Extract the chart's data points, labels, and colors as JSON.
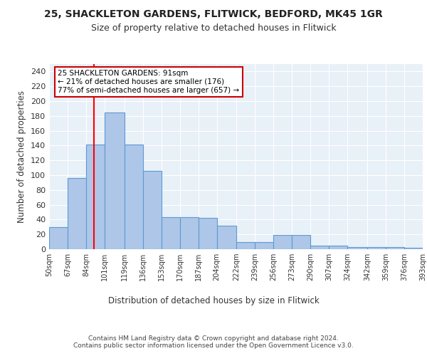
{
  "title1": "25, SHACKLETON GARDENS, FLITWICK, BEDFORD, MK45 1GR",
  "title2": "Size of property relative to detached houses in Flitwick",
  "xlabel": "Distribution of detached houses by size in Flitwick",
  "ylabel": "Number of detached properties",
  "bar_values": [
    30,
    96,
    141,
    185,
    141,
    106,
    43,
    43,
    42,
    32,
    10,
    10,
    19,
    19,
    5,
    5,
    3,
    3,
    3,
    2
  ],
  "bin_edges": [
    50,
    67,
    84,
    101,
    119,
    136,
    153,
    170,
    187,
    204,
    222,
    239,
    256,
    273,
    290,
    307,
    324,
    342,
    359,
    376,
    393
  ],
  "tick_labels": [
    "50sqm",
    "67sqm",
    "84sqm",
    "101sqm",
    "119sqm",
    "136sqm",
    "153sqm",
    "170sqm",
    "187sqm",
    "204sqm",
    "222sqm",
    "239sqm",
    "256sqm",
    "273sqm",
    "290sqm",
    "307sqm",
    "324sqm",
    "342sqm",
    "359sqm",
    "376sqm",
    "393sqm"
  ],
  "bar_color": "#aec6e8",
  "bar_edge_color": "#5b9bd5",
  "red_line_x": 91,
  "annotation_text": "25 SHACKLETON GARDENS: 91sqm\n← 21% of detached houses are smaller (176)\n77% of semi-detached houses are larger (657) →",
  "annotation_box_color": "#ffffff",
  "annotation_box_edge": "#cc0000",
  "background_color": "#e8f0f8",
  "grid_color": "#ffffff",
  "footer": "Contains HM Land Registry data © Crown copyright and database right 2024.\nContains public sector information licensed under the Open Government Licence v3.0.",
  "ylim": [
    0,
    250
  ],
  "yticks": [
    0,
    20,
    40,
    60,
    80,
    100,
    120,
    140,
    160,
    180,
    200,
    220,
    240
  ]
}
